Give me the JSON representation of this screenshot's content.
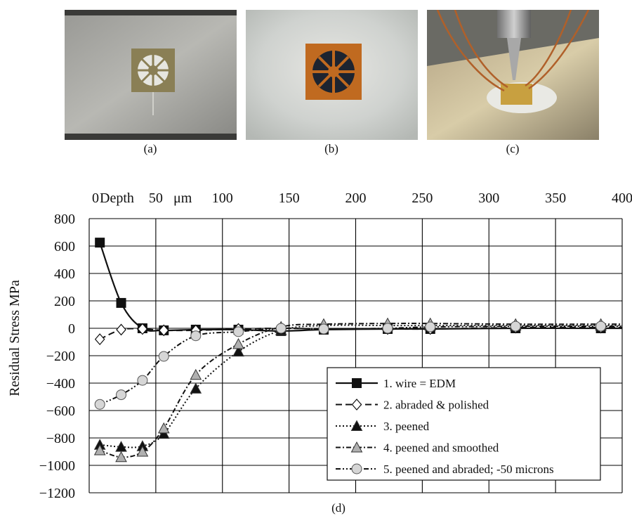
{
  "photos": [
    {
      "caption": "(a)"
    },
    {
      "caption": "(b)"
    },
    {
      "caption": "(c)"
    }
  ],
  "figure_caption": "(d)",
  "colors": {
    "grid": "#000000",
    "line": "#111111",
    "marker_fill_gray": "#b0b0b0",
    "marker_fill_light": "#d6d6d6"
  },
  "chart_data": {
    "type": "line",
    "ylabel": "Residual Stress MPa",
    "x_axis_title_parts": [
      "Depth",
      "μm"
    ],
    "x_ticks": [
      0,
      50,
      100,
      150,
      200,
      250,
      300,
      350,
      400
    ],
    "x_tick_labels": [
      "0",
      "50",
      "100",
      "150",
      "200",
      "250",
      "300",
      "350",
      "400"
    ],
    "y_ticks": [
      800,
      600,
      400,
      200,
      0,
      -200,
      -400,
      -600,
      -800,
      -1000,
      -1200
    ],
    "y_tick_labels": [
      "800",
      "600",
      "400",
      "200",
      "0",
      "−200",
      "−400",
      "−600",
      "−800",
      "−1000",
      "−1200"
    ],
    "xlim": [
      0,
      400
    ],
    "ylim": [
      -1200,
      800
    ],
    "x_axis_position": "top",
    "grid": true,
    "legend_position": "bottom-right",
    "series": [
      {
        "name": "1. wire = EDM",
        "line": "solid",
        "marker": "square",
        "marker_fill": "#111111",
        "x": [
          8,
          24,
          40,
          56,
          80,
          112,
          144,
          176,
          224,
          256,
          320,
          384
        ],
        "y": [
          625,
          185,
          0,
          -15,
          -10,
          -10,
          -20,
          -10,
          -5,
          -5,
          0,
          0
        ]
      },
      {
        "name": "2. abraded & polished",
        "line": "dashed",
        "marker": "diamond",
        "marker_fill": "#ffffff",
        "x": [
          8,
          24,
          40,
          56,
          80,
          112,
          144,
          176,
          224,
          256,
          320,
          384
        ],
        "y": [
          -80,
          -10,
          -5,
          -15,
          -15,
          -5,
          0,
          -5,
          -5,
          -5,
          5,
          5
        ]
      },
      {
        "name": "3. peened",
        "line": "dotted",
        "marker": "triangle",
        "marker_fill": "#111111",
        "x": [
          8,
          24,
          40,
          56,
          80,
          112,
          144,
          176,
          224,
          256,
          320,
          384
        ],
        "y": [
          -850,
          -865,
          -860,
          -770,
          -440,
          -170,
          -15,
          20,
          20,
          20,
          20,
          20
        ]
      },
      {
        "name": "4. peened and smoothed",
        "line": "dashdot",
        "marker": "triangle",
        "marker_fill": "#b0b0b0",
        "x": [
          8,
          24,
          40,
          56,
          80,
          112,
          144,
          176,
          224,
          256,
          320,
          384
        ],
        "y": [
          -890,
          -940,
          -900,
          -730,
          -340,
          -115,
          10,
          30,
          35,
          35,
          30,
          30
        ]
      },
      {
        "name": "5. peened and abraded; -50 microns",
        "line": "dashdotdot",
        "marker": "circle",
        "marker_fill": "#d6d6d6",
        "x": [
          8,
          24,
          40,
          56,
          80,
          112,
          144,
          176,
          224,
          256,
          320,
          384
        ],
        "y": [
          -555,
          -485,
          -380,
          -205,
          -55,
          -25,
          0,
          -5,
          0,
          10,
          15,
          15
        ]
      }
    ]
  }
}
